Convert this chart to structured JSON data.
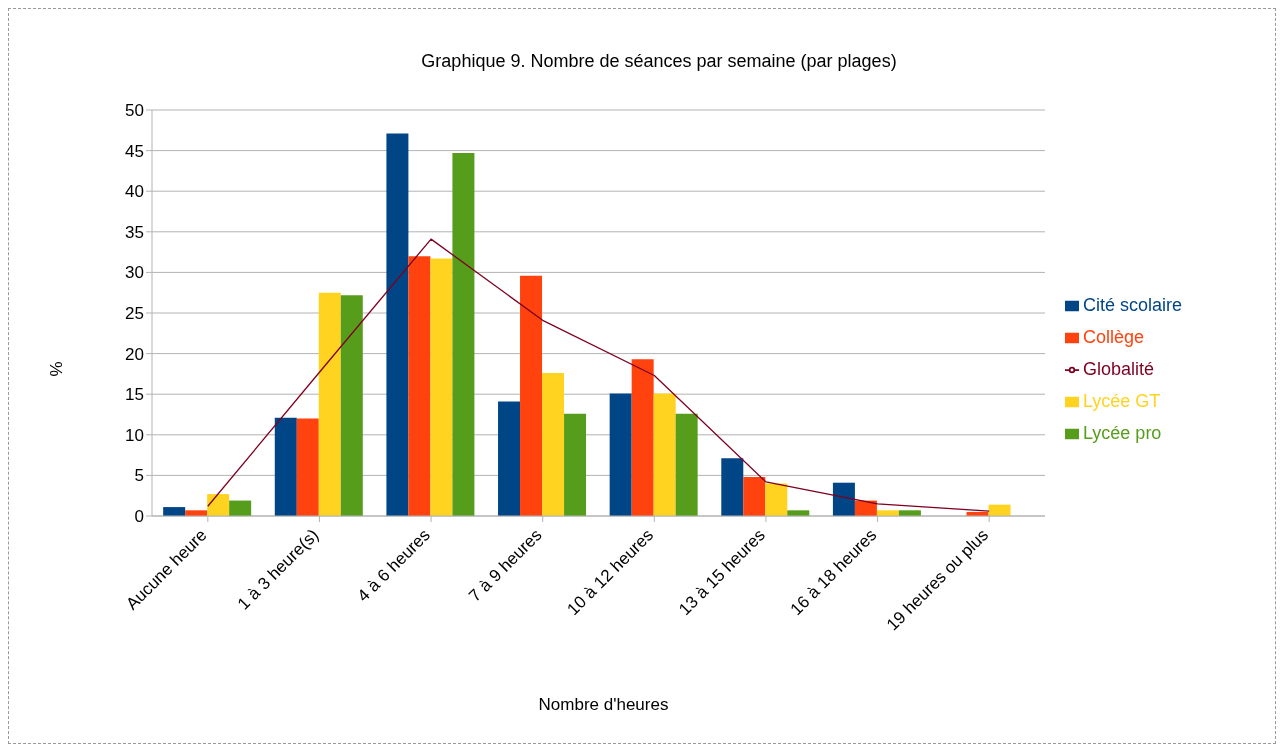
{
  "chart_data": {
    "type": "bar",
    "title": "Graphique 9. Nombre de séances par semaine (par plages)",
    "xlabel": "Nombre d'heures",
    "ylabel": "%",
    "categories": [
      "Aucune heure",
      "1 à 3 heure(s)",
      "4 à 6 heures",
      "7 à 9 heures",
      "10 à 12 heures",
      "13 à 15 heures",
      "16 à 18 heures",
      "19 heures ou plus"
    ],
    "series": [
      {
        "name": "Cité scolaire",
        "color": "#004586",
        "values": [
          1.1,
          12.1,
          47.1,
          14.1,
          15.1,
          7.1,
          4.1,
          0
        ]
      },
      {
        "name": "Collège",
        "color": "#ff420e",
        "values": [
          0.7,
          12.0,
          32.0,
          29.6,
          19.3,
          4.8,
          1.9,
          0.5
        ]
      },
      {
        "name": "Lycée GT",
        "color": "#ffd320",
        "values": [
          2.7,
          27.5,
          31.7,
          17.6,
          15.1,
          4.0,
          0.7,
          1.4
        ]
      },
      {
        "name": "Lycée pro",
        "color": "#579d1c",
        "values": [
          1.9,
          27.2,
          44.7,
          12.6,
          12.6,
          0.7,
          0.7,
          0
        ]
      },
      {
        "name": "Globalité",
        "type": "line",
        "color": "#7e0021",
        "values": [
          1.2,
          17.7,
          34.1,
          24.1,
          17.3,
          4.2,
          1.5,
          0.6
        ]
      }
    ],
    "ylim": [
      0,
      50
    ],
    "yticks": [
      0,
      5,
      10,
      15,
      20,
      25,
      30,
      35,
      40,
      45,
      50
    ],
    "grid": "y",
    "legend": "right",
    "marker": "none"
  }
}
